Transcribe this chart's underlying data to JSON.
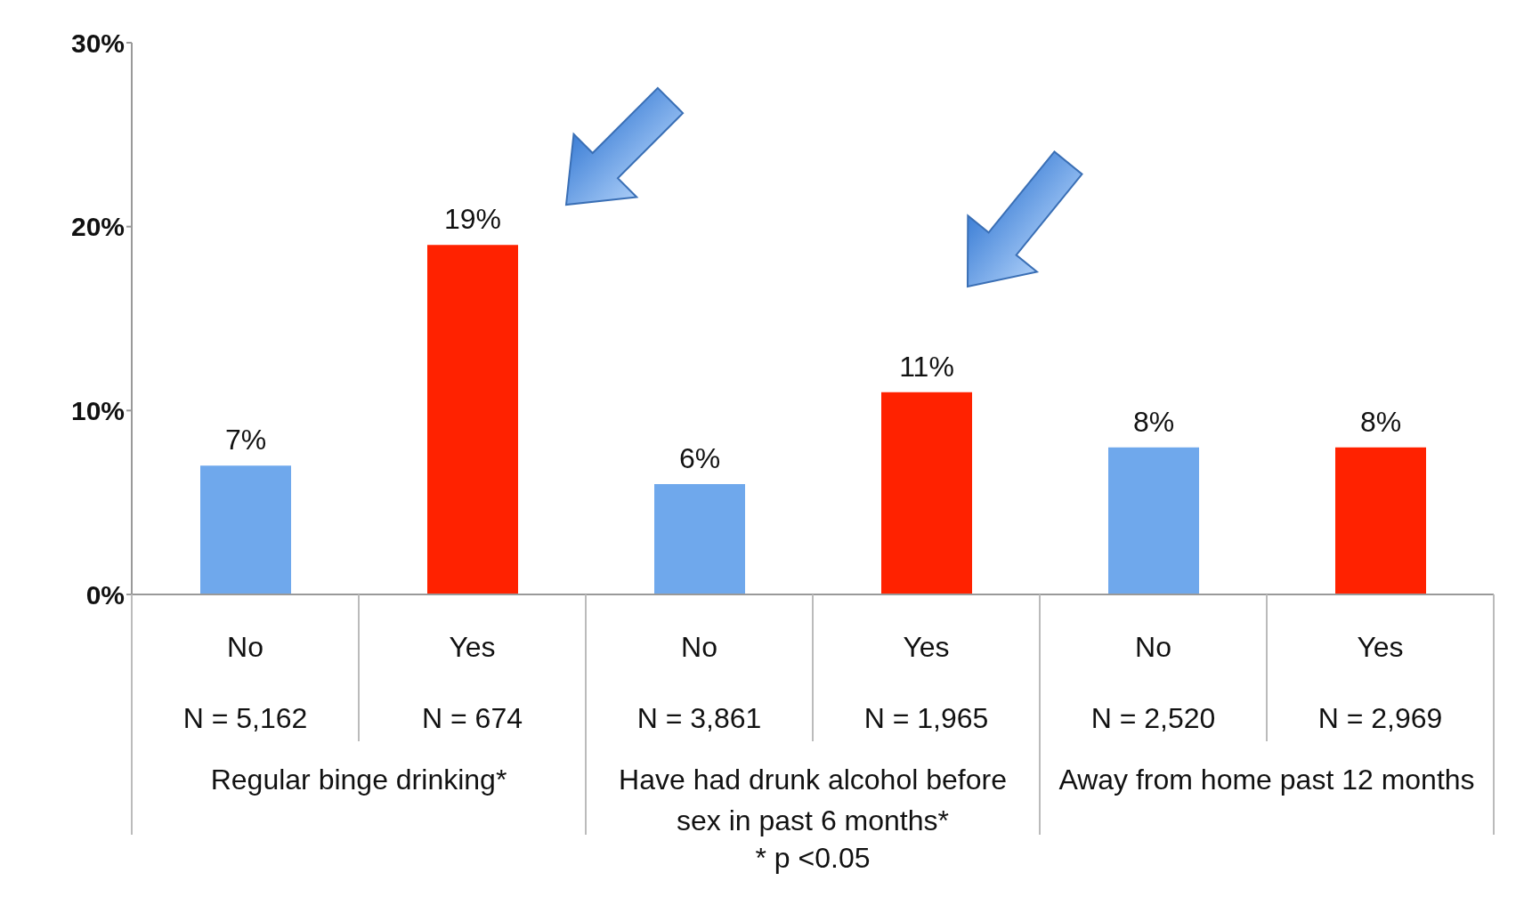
{
  "chart_data": {
    "type": "bar",
    "categories": [
      "No\nN = 5,162",
      "Yes\nN = 674",
      "No\nN = 3,861",
      "Yes\nN = 1,965",
      "No\nN = 2,520",
      "Yes\nN = 2,969"
    ],
    "values": [
      7,
      19,
      6,
      11,
      8,
      8
    ],
    "value_labels": [
      "7%",
      "19%",
      "6%",
      "11%",
      "8%",
      "8%"
    ],
    "colors": [
      "#6fa8ec",
      "#ff2200",
      "#6fa8ec",
      "#ff2200",
      "#6fa8ec",
      "#ff2200"
    ],
    "ylim": [
      0,
      30
    ],
    "yticks": [
      {
        "value": 0,
        "label": "0%"
      },
      {
        "value": 10,
        "label": "10%"
      },
      {
        "value": 20,
        "label": "20%"
      },
      {
        "value": 30,
        "label": "30%"
      }
    ],
    "annotations": [
      "Regular binge drinking*",
      "Have had drunk alcohol before sex in past 6 months*",
      "Away from home past 12 months",
      "* p <0.05"
    ],
    "grid": false,
    "legend": false
  }
}
